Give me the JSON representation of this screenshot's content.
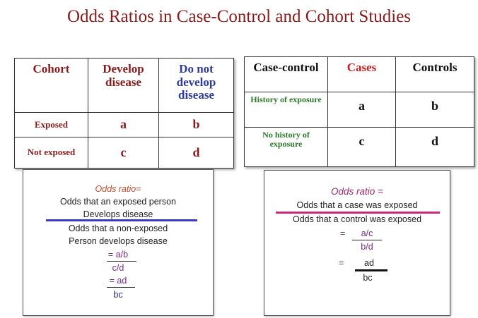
{
  "title": "Odds Ratios in Case-Control and Cohort Studies",
  "colors": {
    "title": "#8b1a1a",
    "develop_header": "#8b1a1a",
    "not_develop_header": "#2e3a9e",
    "cases_header": "#cc1f1f",
    "exposure_labels": "#2a7a2a",
    "left_rule": "#3a3ac8",
    "right_rule": "#d0287a"
  },
  "cohort_table": {
    "headers": [
      "Cohort",
      "Develop disease",
      "Do not develop disease"
    ],
    "rows": [
      {
        "label": "Exposed",
        "cells": [
          "a",
          "b"
        ]
      },
      {
        "label": "Not exposed",
        "cells": [
          "c",
          "d"
        ]
      }
    ]
  },
  "case_control_table": {
    "headers": [
      "Case-control",
      "Cases",
      "Controls"
    ],
    "rows": [
      {
        "label": "History of exposure",
        "cells": [
          "a",
          "b"
        ]
      },
      {
        "label": "No history of exposure",
        "cells": [
          "c",
          "d"
        ]
      }
    ]
  },
  "cohort_formula": {
    "heading": "Odds ratio=",
    "numerator_1": "Odds that an exposed person",
    "numerator_2": "Develops disease",
    "denominator_1": "Odds that a non-exposed",
    "denominator_2": "Person develops disease",
    "frac1_num": "= a/b",
    "frac1_den": "c/d",
    "frac2_num": "= ad",
    "frac2_den": "bc"
  },
  "case_control_formula": {
    "heading": "Odds ratio =",
    "numerator": "Odds that a case was exposed",
    "denominator": "Odds that a control was exposed",
    "eq1": "=",
    "frac1_num": "a/c",
    "frac1_den": "b/d",
    "eq2": "=",
    "frac2_num": "ad",
    "frac2_den": "bc"
  }
}
